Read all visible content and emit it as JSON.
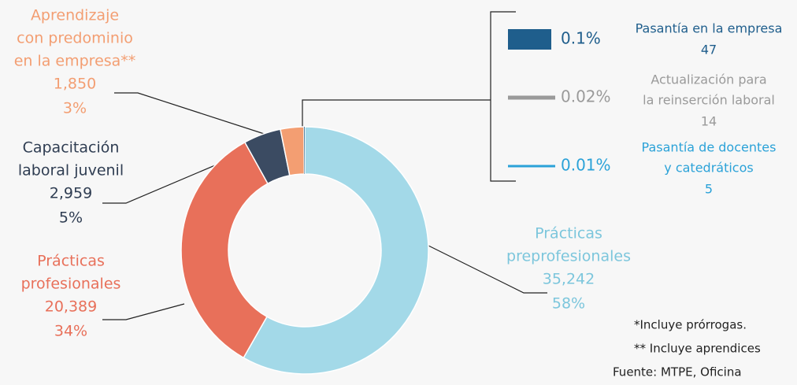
{
  "chart_data": {
    "type": "donut",
    "categories": [
      [
        "Prácticas",
        "preprofesionales"
      ],
      [
        "Prácticas",
        "profesionales"
      ],
      [
        "Capacitación",
        "laboral juvenil"
      ],
      [
        "Aprendizaje",
        "con predominio",
        "en la empresa**"
      ],
      [
        "Pasantía en la empresa"
      ],
      [
        "Actualización para",
        "la reinserción laboral"
      ],
      [
        "Pasantía de docentes",
        "y catedráticos"
      ]
    ],
    "values": [
      35242,
      20389,
      2959,
      1850,
      47,
      14,
      5
    ],
    "value_labels": [
      "35,242",
      "20,389",
      "2,959",
      "1,850",
      "47",
      "14",
      "5"
    ],
    "percentages": [
      58,
      34,
      5,
      3,
      0.1,
      0.02,
      0.01
    ],
    "percentage_labels": [
      "58%",
      "34%",
      "5%",
      "3%",
      "0.1%",
      "0.02%",
      "0.01%"
    ],
    "colors": [
      "#a3d9e8",
      "#e8705a",
      "#3b4b62",
      "#f39e72",
      "#1f5e8c",
      "#9a9a9a",
      "#2ba2d8"
    ],
    "notes": [
      "*Incluye prórrogas.",
      "** Incluye aprendices",
      "Fuente: MTPE, Oficina"
    ]
  }
}
